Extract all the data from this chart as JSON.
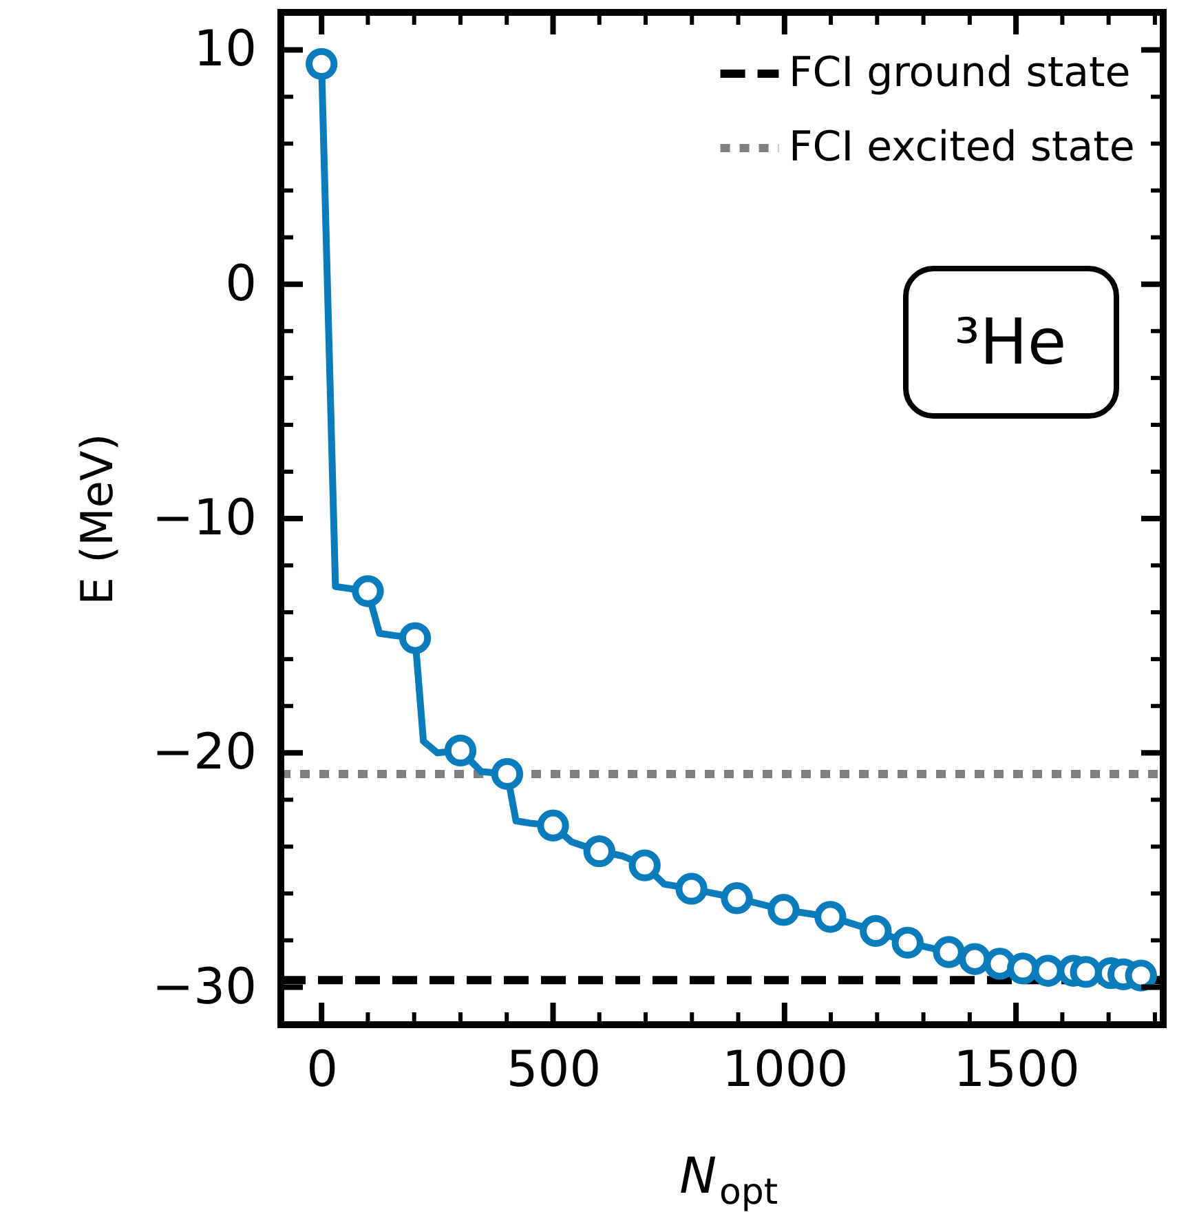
{
  "chart_data": {
    "type": "line",
    "xlabel": "N$_{opt}$",
    "ylabel": "E (MeV)",
    "xlim": [
      -88,
      1818
    ],
    "ylim": [
      -31.6,
      11.6
    ],
    "xticks": [
      0,
      500,
      1000,
      1500
    ],
    "yticks": [
      -30,
      -20,
      -10,
      0,
      10
    ],
    "grid": false,
    "legend": "top right",
    "annotations": [
      "³He"
    ],
    "ref_lines": [
      {
        "axis": "y",
        "value": -29.7,
        "label": "FCI ground state",
        "color": "#000000",
        "line_style": "dashed"
      },
      {
        "axis": "y",
        "value": -20.9,
        "label": "FCI excited state",
        "color": "#808080",
        "line_style": "dotted"
      }
    ],
    "series": [
      {
        "color": "#0a7bbb",
        "marker": "none",
        "line_style": "solid",
        "x": [
          0,
          30,
          100,
          125,
          160,
          202,
          220,
          250,
          300,
          345,
          401,
          420,
          450,
          500,
          540,
          600,
          650,
          698,
          740,
          799,
          897,
          998,
          1099,
          1197,
          1266,
          1355,
          1411,
          1465,
          1515,
          1569,
          1624,
          1651,
          1705,
          1732,
          1770
        ],
        "values": [
          9.4,
          -12.9,
          -13.1,
          -14.9,
          -15.0,
          -15.1,
          -19.5,
          -20.0,
          -19.9,
          -20.8,
          -20.9,
          -22.9,
          -23.0,
          -23.1,
          -23.8,
          -24.2,
          -24.4,
          -24.8,
          -25.6,
          -25.8,
          -26.2,
          -26.7,
          -27.0,
          -27.6,
          -28.1,
          -28.5,
          -28.8,
          -29.0,
          -29.2,
          -29.3,
          -29.3,
          -29.35,
          -29.4,
          -29.45,
          -29.5
        ]
      },
      {
        "type": "scatter",
        "color": "#0a7bbb",
        "marker": "circle",
        "x": [
          0,
          100,
          202,
          300,
          401,
          500,
          600,
          698,
          799,
          897,
          998,
          1099,
          1197,
          1266,
          1355,
          1411,
          1465,
          1515,
          1569,
          1624,
          1651,
          1705,
          1732,
          1770
        ],
        "values": [
          9.4,
          -13.1,
          -15.1,
          -19.9,
          -20.9,
          -23.1,
          -24.2,
          -24.8,
          -25.8,
          -26.2,
          -26.7,
          -27.0,
          -27.6,
          -28.1,
          -28.5,
          -28.8,
          -29.0,
          -29.2,
          -29.3,
          -29.3,
          -29.35,
          -29.4,
          -29.45,
          -29.5
        ]
      }
    ]
  }
}
